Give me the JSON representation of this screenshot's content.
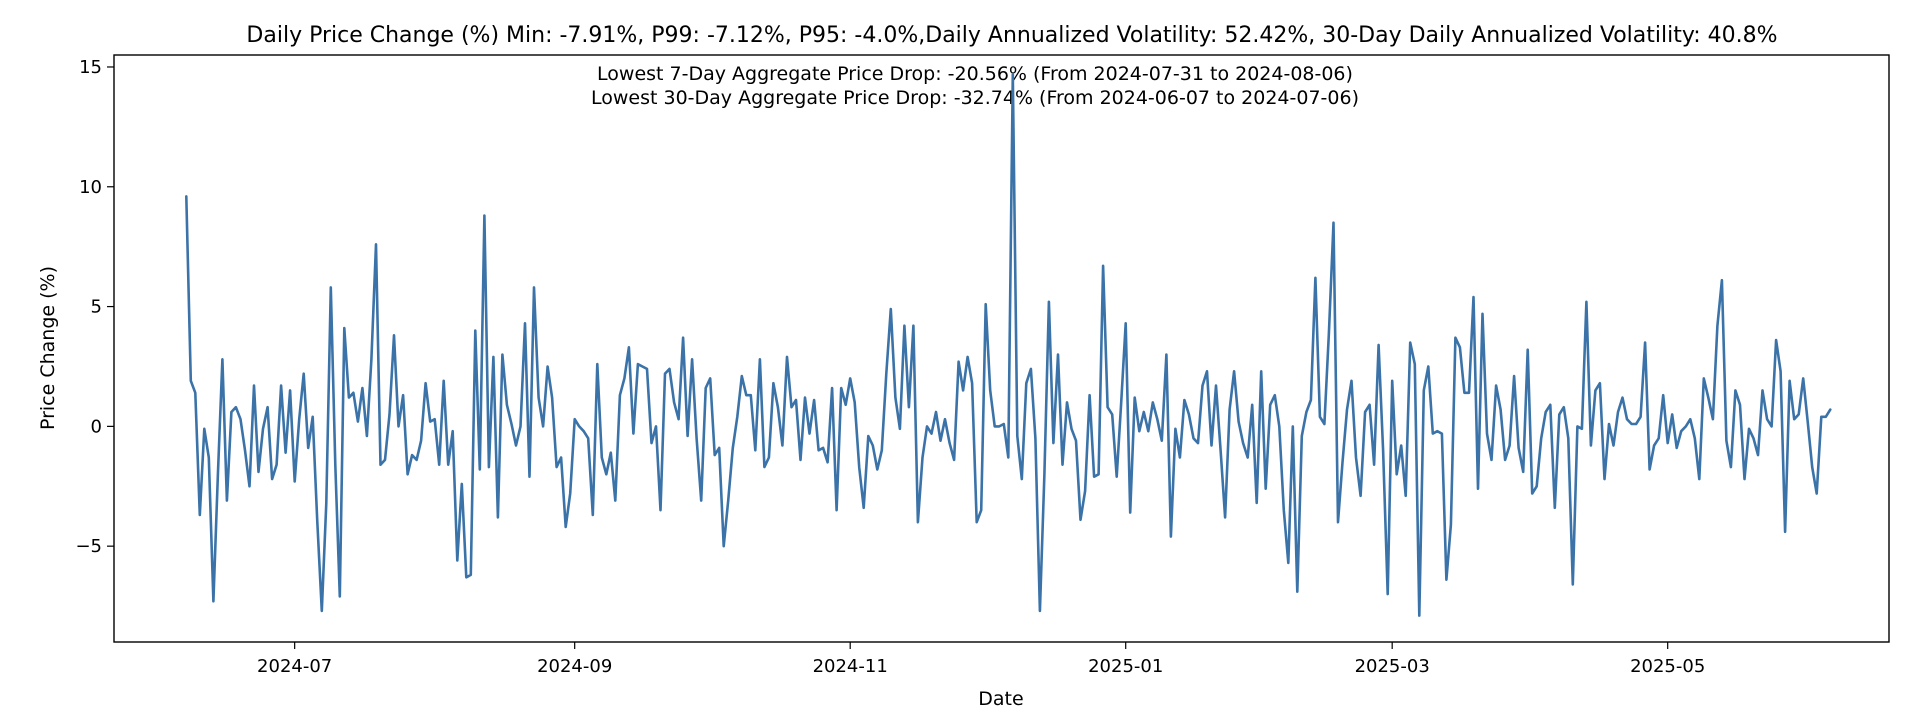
{
  "chart_data": {
    "type": "line",
    "title": "Daily Price Change (%) Min: -7.91%, P99: -7.12%, P95: -4.0%,Daily Annualized Volatility: 52.42%, 30-Day Daily Annualized Volatility: 40.8%",
    "annotations": [
      "Lowest 7-Day Aggregate Price Drop: -20.56% (From 2024-07-31 to 2024-08-06)",
      "Lowest 30-Day Aggregate Price Drop: -32.74% (From 2024-06-07 to 2024-07-06)"
    ],
    "xlabel": "Date",
    "ylabel": "Price Change (%)",
    "xlim": [
      "2024-05-22",
      "2025-06-19"
    ],
    "ylim": [
      -9.0,
      15.5
    ],
    "x_ticks": [
      "2024-07",
      "2024-09",
      "2024-11",
      "2025-01",
      "2025-03",
      "2025-05"
    ],
    "y_ticks": [
      -5,
      0,
      5,
      10,
      15
    ],
    "y_tick_labels": [
      "−5",
      "0",
      "5",
      "10",
      "15"
    ],
    "grid": false,
    "color": "#3b73a8",
    "series": [
      {
        "start_date": "2024-06-07",
        "values": [
          9.6,
          1.9,
          1.4,
          -3.7,
          -0.1,
          -1.3,
          -7.3,
          -2.0,
          2.8,
          -3.1,
          0.6,
          0.8,
          0.3,
          -1.0,
          -2.5,
          1.7,
          -1.9,
          -0.1,
          0.8,
          -2.2,
          -1.6,
          1.7,
          -1.1,
          1.5,
          -2.3,
          0.3,
          2.2,
          -0.9,
          0.4,
          -3.9,
          -7.7,
          -3.2,
          5.8,
          -1.6,
          -7.1,
          4.1,
          1.2,
          1.4,
          0.2,
          1.6,
          -0.4,
          2.8,
          7.6,
          -1.6,
          -1.4,
          0.5,
          3.8,
          0.0,
          1.3,
          -2.0,
          -1.2,
          -1.4,
          -0.6,
          1.8,
          0.2,
          0.3,
          -1.6,
          1.9,
          -1.6,
          -0.2,
          -5.6,
          -2.4,
          -6.3,
          -6.2,
          4.0,
          -1.8,
          8.8,
          -1.7,
          2.9,
          -3.8,
          3.0,
          0.9,
          0.1,
          -0.8,
          0.0,
          4.3,
          -2.1,
          5.8,
          1.2,
          0.0,
          2.5,
          1.2,
          -1.7,
          -1.3,
          -4.2,
          -2.8,
          0.3,
          0.0,
          -0.2,
          -0.5,
          -3.7,
          2.6,
          -1.3,
          -2.0,
          -1.1,
          -3.1,
          1.3,
          2.0,
          3.3,
          -0.3,
          2.6,
          2.5,
          2.4,
          -0.7,
          0.0,
          -3.5,
          2.2,
          2.4,
          1.0,
          0.3,
          3.7,
          -0.4,
          2.8,
          -0.5,
          -3.1,
          1.6,
          2.0,
          -1.2,
          -0.9,
          -5.0,
          -3.1,
          -0.9,
          0.4,
          2.1,
          1.3,
          1.3,
          -1.0,
          2.8,
          -1.7,
          -1.3,
          1.8,
          0.8,
          -0.8,
          2.9,
          0.8,
          1.1,
          -1.4,
          1.2,
          -0.3,
          1.1,
          -1.0,
          -0.9,
          -1.5,
          1.6,
          -3.5,
          1.6,
          0.9,
          2.0,
          1.0,
          -1.7,
          -3.4,
          -0.4,
          -0.8,
          -1.8,
          -1.0,
          2.2,
          4.9,
          1.2,
          -0.1,
          4.2,
          0.8,
          4.2,
          -4.0,
          -1.3,
          0.0,
          -0.3,
          0.6,
          -0.6,
          0.3,
          -0.7,
          -1.4,
          2.7,
          1.5,
          2.9,
          1.8,
          -4.0,
          -3.5,
          5.1,
          1.5,
          0.0,
          0.0,
          0.1,
          -1.3,
          14.7,
          -0.4,
          -2.2,
          1.8,
          2.4,
          -0.5,
          -7.7,
          -2.0,
          5.2,
          -0.7,
          3.0,
          -1.6,
          1.0,
          -0.1,
          -0.6,
          -3.9,
          -2.7,
          1.3,
          -2.1,
          -2.0,
          6.7,
          0.8,
          0.5,
          -2.1,
          1.0,
          4.3,
          -3.6,
          1.2,
          -0.2,
          0.6,
          -0.2,
          1.0,
          0.3,
          -0.6,
          3.0,
          -4.6,
          -0.1,
          -1.3,
          1.1,
          0.5,
          -0.5,
          -0.7,
          1.7,
          2.3,
          -0.8,
          1.7,
          -1.0,
          -3.8,
          0.7,
          2.3,
          0.2,
          -0.7,
          -1.3,
          0.9,
          -3.2,
          2.3,
          -2.6,
          0.9,
          1.3,
          0.0,
          -3.5,
          -5.7,
          0.0,
          -6.9,
          -0.4,
          0.6,
          1.1,
          6.2,
          0.4,
          0.1,
          3.9,
          8.5,
          -4.0,
          -1.5,
          0.7,
          1.9,
          -1.3,
          -2.9,
          0.6,
          0.9,
          -1.6,
          3.4,
          -1.0,
          -7.0,
          1.9,
          -2.0,
          -0.8,
          -2.9,
          3.5,
          2.6,
          -7.9,
          1.5,
          2.5,
          -0.3,
          -0.2,
          -0.3,
          -6.4,
          -4.1,
          3.7,
          3.3,
          1.4,
          1.4,
          5.4,
          -2.6,
          4.7,
          -0.3,
          -1.4,
          1.7,
          0.7,
          -1.4,
          -0.8,
          2.1,
          -0.9,
          -1.9,
          3.2,
          -2.8,
          -2.5,
          -0.5,
          0.6,
          0.9,
          -3.4,
          0.5,
          0.8,
          -0.5,
          -6.6,
          0.0,
          -0.1,
          5.2,
          -0.8,
          1.5,
          1.8,
          -2.2,
          0.1,
          -0.8,
          0.6,
          1.2,
          0.3,
          0.1,
          0.1,
          0.4,
          3.5,
          -1.8,
          -0.8,
          -0.5,
          1.3,
          -0.7,
          0.5,
          -0.9,
          -0.2,
          0.0,
          0.3,
          -0.5,
          -2.2,
          2.0,
          1.2,
          0.3,
          4.2,
          6.1,
          -0.6,
          -1.7,
          1.5,
          0.9,
          -2.2,
          -0.1,
          -0.5,
          -1.2,
          1.5,
          0.3,
          0.0,
          3.6,
          2.3,
          -4.4,
          1.9,
          0.3,
          0.5,
          2.0,
          0.2,
          -1.7,
          -2.8,
          0.4,
          0.4,
          0.7
        ]
      }
    ]
  }
}
